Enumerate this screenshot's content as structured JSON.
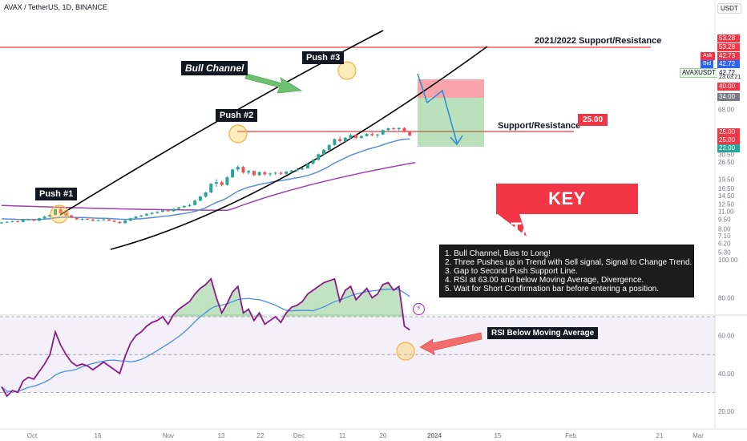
{
  "header": {
    "symbol_line": "AVAX / TetherUS, 1D, BINANCE",
    "currency": "USDT"
  },
  "chart_data": {
    "type": "candlestick",
    "symbol": "AVAXUSDT",
    "interval": "1D",
    "exchange": "BINANCE",
    "price_axis": {
      "scale": "log",
      "ticks": [
        "68.00",
        "53.28",
        "42.73",
        "42.72",
        "40.00",
        "34.00",
        "30.50",
        "26.50",
        "25.00",
        "22.00",
        "19.50",
        "16.50",
        "14.50",
        "12.50",
        "11.00",
        "9.50",
        "8.00",
        "7.10",
        "6.20",
        "5.30"
      ]
    },
    "rsi_axis": {
      "ticks": [
        "100.00",
        "80.00",
        "60.00",
        "40.00",
        "20.00"
      ],
      "ylim": [
        15,
        108
      ],
      "band": [
        30,
        70
      ]
    },
    "time_axis": {
      "ticks": [
        "Oct",
        "16",
        "Nov",
        "13",
        "22",
        "Dec",
        "11",
        "20",
        "2024",
        "15",
        "Feb",
        "21",
        "Mar"
      ]
    },
    "candles": [
      [
        8.9,
        9.1,
        8.8,
        9.0
      ],
      [
        9.0,
        9.2,
        8.9,
        9.1
      ],
      [
        9.1,
        9.3,
        9.0,
        9.2
      ],
      [
        9.2,
        9.3,
        9.0,
        9.1
      ],
      [
        9.1,
        9.5,
        9.0,
        9.4
      ],
      [
        9.4,
        9.6,
        9.3,
        9.5
      ],
      [
        9.5,
        9.6,
        9.2,
        9.3
      ],
      [
        9.3,
        9.8,
        9.2,
        9.7
      ],
      [
        9.7,
        10.2,
        9.6,
        10.0
      ],
      [
        10.0,
        10.4,
        9.8,
        10.3
      ],
      [
        10.3,
        11.6,
        10.2,
        11.4
      ],
      [
        11.4,
        11.8,
        10.4,
        10.6
      ],
      [
        10.6,
        10.8,
        10.1,
        10.2
      ],
      [
        10.2,
        10.3,
        9.7,
        9.8
      ],
      [
        9.8,
        9.9,
        9.4,
        9.5
      ],
      [
        9.5,
        9.7,
        9.3,
        9.6
      ],
      [
        9.6,
        9.7,
        9.4,
        9.5
      ],
      [
        9.5,
        9.6,
        9.2,
        9.3
      ],
      [
        9.3,
        9.5,
        9.2,
        9.4
      ],
      [
        9.4,
        9.6,
        9.3,
        9.5
      ],
      [
        9.5,
        9.6,
        9.2,
        9.3
      ],
      [
        9.3,
        9.4,
        9.0,
        9.1
      ],
      [
        9.1,
        9.2,
        8.8,
        8.9
      ],
      [
        8.9,
        9.4,
        8.8,
        9.3
      ],
      [
        9.3,
        9.8,
        9.2,
        9.7
      ],
      [
        9.7,
        10.1,
        9.6,
        10.0
      ],
      [
        10.0,
        10.3,
        9.9,
        10.2
      ],
      [
        10.2,
        10.6,
        10.1,
        10.5
      ],
      [
        10.5,
        10.8,
        10.3,
        10.7
      ],
      [
        10.7,
        11.0,
        10.5,
        10.9
      ],
      [
        10.9,
        11.3,
        10.8,
        11.2
      ],
      [
        11.2,
        11.4,
        10.9,
        11.0
      ],
      [
        11.0,
        11.6,
        10.9,
        11.5
      ],
      [
        11.5,
        11.9,
        11.3,
        11.8
      ],
      [
        11.8,
        12.2,
        11.6,
        12.1
      ],
      [
        12.1,
        12.5,
        11.9,
        12.3
      ],
      [
        12.3,
        13.5,
        12.2,
        13.3
      ],
      [
        13.3,
        14.5,
        13.1,
        14.3
      ],
      [
        14.3,
        15.6,
        14.0,
        15.4
      ],
      [
        15.4,
        18.2,
        15.2,
        18.0
      ],
      [
        18.0,
        19.5,
        17.0,
        18.5
      ],
      [
        18.5,
        19.0,
        17.2,
        17.6
      ],
      [
        17.6,
        20.5,
        17.4,
        20.2
      ],
      [
        20.2,
        23.5,
        20.0,
        23.2
      ],
      [
        23.2,
        25.0,
        22.4,
        24.3
      ],
      [
        24.3,
        24.8,
        21.5,
        22.0
      ],
      [
        22.0,
        23.0,
        21.2,
        22.6
      ],
      [
        22.6,
        22.9,
        20.5,
        21.0
      ],
      [
        21.0,
        22.5,
        20.7,
        22.1
      ],
      [
        22.1,
        22.6,
        20.8,
        21.3
      ],
      [
        21.3,
        22.0,
        20.6,
        21.6
      ],
      [
        21.6,
        22.3,
        21.0,
        21.9
      ],
      [
        21.9,
        22.4,
        21.1,
        21.5
      ],
      [
        21.5,
        22.6,
        21.2,
        22.3
      ],
      [
        22.3,
        23.0,
        21.9,
        22.8
      ],
      [
        22.8,
        23.5,
        22.3,
        23.2
      ],
      [
        23.2,
        24.0,
        22.9,
        23.7
      ],
      [
        23.7,
        26.0,
        23.5,
        25.8
      ],
      [
        25.8,
        28.0,
        25.3,
        27.6
      ],
      [
        27.6,
        31.0,
        27.2,
        30.5
      ],
      [
        30.5,
        33.5,
        30.0,
        33.0
      ],
      [
        33.0,
        36.5,
        32.4,
        36.0
      ],
      [
        36.0,
        40.5,
        35.5,
        40.0
      ],
      [
        40.0,
        42.0,
        37.5,
        38.6
      ],
      [
        38.6,
        41.5,
        38.0,
        41.0
      ],
      [
        41.0,
        44.0,
        40.2,
        43.0
      ],
      [
        43.0,
        43.8,
        40.0,
        40.8
      ],
      [
        40.8,
        42.8,
        40.3,
        42.2
      ],
      [
        42.2,
        44.5,
        41.8,
        43.8
      ],
      [
        43.8,
        45.2,
        42.0,
        42.8
      ],
      [
        42.8,
        44.0,
        41.0,
        43.5
      ],
      [
        43.5,
        47.5,
        43.0,
        47.0
      ],
      [
        47.0,
        49.0,
        45.5,
        48.5
      ],
      [
        48.5,
        49.5,
        47.0,
        47.8
      ],
      [
        47.8,
        49.2,
        46.5,
        48.8
      ],
      [
        48.8,
        49.5,
        45.0,
        45.6
      ],
      [
        45.6,
        46.0,
        42.0,
        42.7
      ]
    ],
    "moving_averages": [
      {
        "color": "#5b8fd4",
        "style": "fast"
      },
      {
        "color": "#a040b0",
        "style": "slow"
      }
    ],
    "rsi": [
      33,
      28,
      31,
      30,
      36,
      38,
      37,
      41,
      45,
      50,
      62,
      55,
      50,
      46,
      44,
      45,
      44,
      42,
      44,
      46,
      44,
      42,
      40,
      49,
      56,
      60,
      62,
      65,
      67,
      68,
      70,
      66,
      71,
      74,
      76,
      78,
      82,
      85,
      87,
      90,
      80,
      72,
      77,
      83,
      86,
      72,
      74,
      68,
      72,
      66,
      68,
      70,
      67,
      72,
      75,
      76,
      78,
      82,
      84,
      86,
      88,
      89,
      90,
      78,
      84,
      86,
      79,
      82,
      85,
      80,
      82,
      87,
      88,
      84,
      86,
      65,
      63
    ],
    "rsi_ma_color": "#4a90e2",
    "rsi_line_color": "#8b1a8b",
    "annotations": {
      "bull_channel": "Bull Channel",
      "push1": "Push #1",
      "push2": "Push #2",
      "push3": "Push #3",
      "resistance_2021": "2021/2022 Support/Resistance",
      "support_resistance": "Support/Resistance",
      "sr_level": "25.00",
      "rsi_note": "RSI Below Moving Average",
      "takeaways_title": "KEY TAKEAWAYS",
      "takeaways": [
        "1. Bull Channel, Bias to Long!",
        "2. Three Pushes up in Trend with Sell signal, Signal to Change Trend.",
        "3. Gap to Second Push Support Line.",
        "4. RSI at 63.00 and below Moving Average, Divergence.",
        "5. Wait for Short Confirmation bar before entering a position."
      ]
    },
    "price_tags": {
      "top_level": "53.28",
      "ask_label": "Ask",
      "ask": "42.73",
      "bid_label": "Bid",
      "bid": "42.72",
      "symbol_tag": "AVAXUSDT",
      "last": "42.72",
      "countdown": "23:03:21",
      "stop": "40.00",
      "ma_tag": "34.00",
      "sr_tag": "25.00",
      "target": "22.00"
    },
    "colors": {
      "up": "#26a69a",
      "down": "#ef5350",
      "resistance": "#f23645",
      "stop_zone": "rgba(242,54,69,0.45)",
      "target_zone": "rgba(76,175,80,0.38)",
      "arrow_green": "#6dbf71",
      "arrow_red": "#f26d6d",
      "projection": "#2e8fd6"
    }
  }
}
